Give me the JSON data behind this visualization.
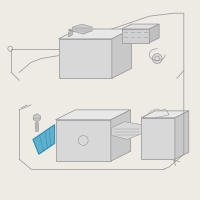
{
  "bg_color": "#eeebe5",
  "lc": "#999999",
  "lc2": "#777777",
  "highlight_fill": "#4daacc",
  "highlight_edge": "#2288aa",
  "face_top": "#e8e8e8",
  "face_front": "#d8d8d8",
  "face_right": "#c8c8c8",
  "face_white": "#f5f5f5"
}
